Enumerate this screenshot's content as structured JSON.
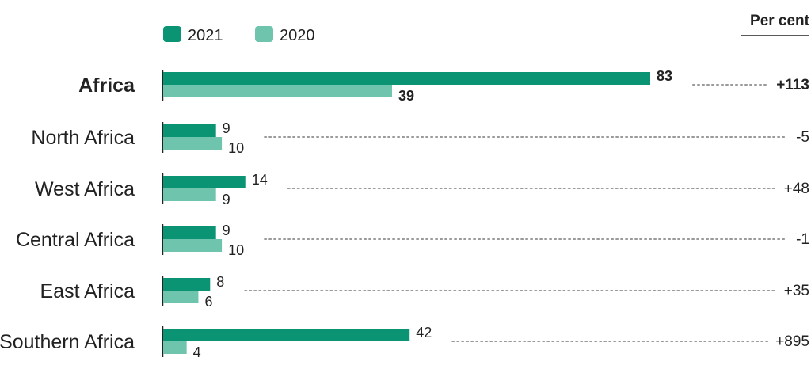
{
  "colors": {
    "series_2021": "#0a9473",
    "series_2020": "#6ec4ac",
    "dots": "#9a9a9a",
    "text": "#222222"
  },
  "header": {
    "unit_label": "Per cent"
  },
  "chart_data": {
    "type": "bar",
    "orientation": "horizontal",
    "unit_label": "Per cent",
    "legend": {
      "placement": "top-left",
      "entries": [
        "2021",
        "2020"
      ]
    },
    "categories": [
      "Africa",
      "North Africa",
      "West Africa",
      "Central Africa",
      "East Africa",
      "Southern Africa"
    ],
    "series": [
      {
        "name": "2021",
        "values": [
          83,
          9,
          14,
          9,
          8,
          42
        ]
      },
      {
        "name": "2020",
        "values": [
          39,
          10,
          9,
          10,
          6,
          4
        ]
      }
    ],
    "change_labels": [
      "+113",
      "-5",
      "+48",
      "-1",
      "+35",
      "+895"
    ],
    "highlight_category": "Africa",
    "xlim": [
      0,
      83
    ],
    "grid": false
  }
}
